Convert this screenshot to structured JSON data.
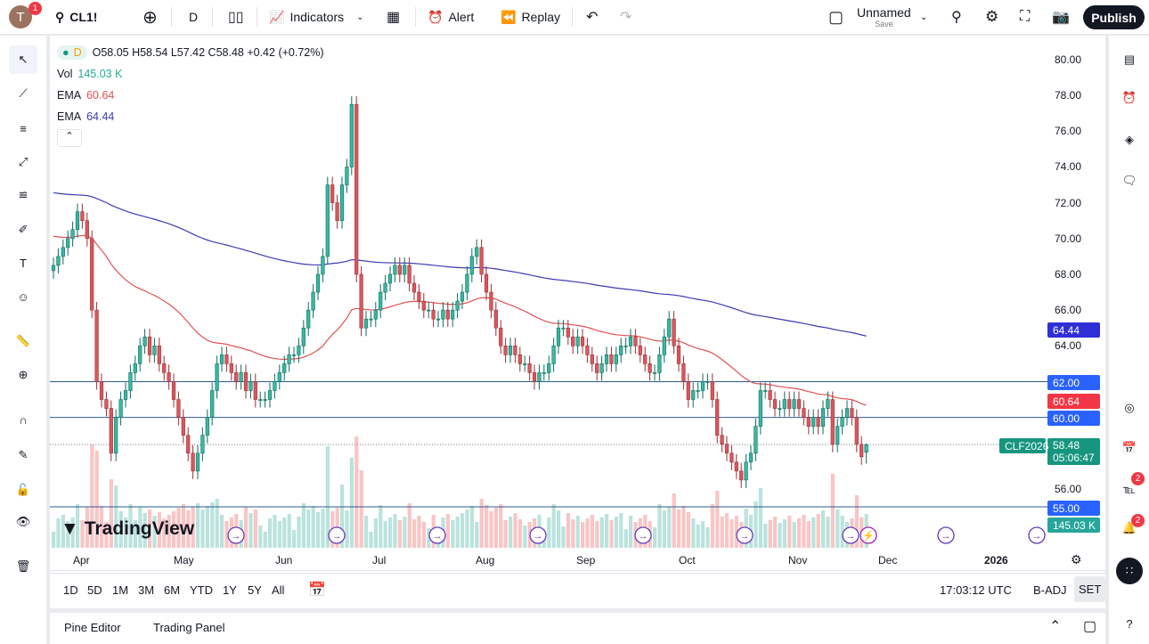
{
  "header": {
    "user_initial": "T",
    "notifications": "1",
    "symbol": "CL1!",
    "interval": "D",
    "indicators": "Indicators",
    "alert": "Alert",
    "replay": "Replay",
    "layout_name": "Unnamed",
    "layout_save": "Save",
    "publish": "Publish"
  },
  "legend": {
    "interval": "D",
    "ohlc": "O58.05 H58.54 L57.42 C58.48 +0.42 (+0.72%)",
    "vol_label": "Vol",
    "vol_value": "145.03 K",
    "ema1_label": "EMA",
    "ema1_value": "60.64",
    "ema2_label": "EMA",
    "ema2_value": "64.44"
  },
  "logo": "TradingView",
  "price_axis": {
    "ticks": [
      "80.00",
      "78.00",
      "76.00",
      "74.00",
      "72.00",
      "70.00",
      "68.00",
      "66.00",
      "64.00",
      "56.00"
    ],
    "labels": {
      "ema2": "64.44",
      "level62": "62.00",
      "ema1": "60.64",
      "level60": "60.00",
      "last": "58.48",
      "countdown": "05:06:47",
      "contract": "CLF2026",
      "level55": "55.00",
      "volume": "145.03 K"
    }
  },
  "time_axis": [
    "Apr",
    "May",
    "Jun",
    "Jul",
    "Aug",
    "Sep",
    "Oct",
    "Nov",
    "Dec",
    "2026"
  ],
  "ranges": [
    "1D",
    "5D",
    "1M",
    "3M",
    "6M",
    "YTD",
    "1Y",
    "5Y",
    "All"
  ],
  "status": {
    "time": "17:03:12 UTC",
    "badj": "B-ADJ",
    "set": "SET"
  },
  "bottom_tabs": [
    "Pine Editor",
    "Trading Panel"
  ],
  "right_badges": {
    "ideas": "2",
    "alerts": "2"
  },
  "colors": {
    "up": "#089981",
    "down": "#f23645",
    "ema1": "#e05252",
    "ema2": "#3b3bb3",
    "level": "#2c5b8e",
    "last": "#16957f"
  },
  "chart_data": {
    "type": "candlestick",
    "symbol": "CL1!",
    "interval": "D",
    "ylim": [
      54,
      81
    ],
    "horizontal_levels": [
      62,
      60,
      55
    ],
    "last": {
      "open": 58.05,
      "high": 58.54,
      "low": 57.42,
      "close": 58.48
    },
    "ema_last": [
      60.64,
      64.44
    ],
    "closes": [
      68.5,
      69,
      69.5,
      70,
      70.5,
      71.5,
      71,
      70,
      66,
      62,
      61,
      60.5,
      58,
      60,
      61,
      61.5,
      62.5,
      63,
      64,
      64.5,
      63.5,
      64,
      63,
      62.5,
      62,
      61,
      60,
      59,
      58,
      57,
      58,
      59,
      60,
      61.5,
      63,
      63.5,
      63,
      62.5,
      62,
      62.5,
      61.5,
      62,
      61,
      61,
      61,
      61.5,
      62,
      62.5,
      63,
      63.5,
      63.5,
      64,
      65,
      66,
      67,
      68,
      69,
      73,
      72,
      71,
      73,
      74,
      77.5,
      68,
      65,
      65.5,
      65.5,
      66,
      67,
      67.5,
      68,
      68.5,
      68,
      68.5,
      67.5,
      67,
      66.5,
      66,
      66,
      65.5,
      65.5,
      66,
      65.5,
      66,
      66.5,
      67,
      68,
      69,
      69.5,
      68,
      67,
      66,
      65,
      64,
      63.5,
      64,
      63.5,
      63,
      63,
      62.5,
      62,
      62.5,
      62.5,
      63,
      64,
      65,
      65,
      64.5,
      64,
      64.5,
      64,
      63.5,
      63,
      62.5,
      63,
      63.5,
      63,
      63.5,
      64,
      64,
      64.5,
      64,
      63.5,
      63,
      62.5,
      62.5,
      63.5,
      64.5,
      65.5,
      64,
      63,
      62,
      61,
      61.5,
      61.5,
      62,
      62,
      61,
      59,
      58.5,
      58,
      57.5,
      57,
      56.5,
      57.5,
      58,
      59.5,
      61.5,
      61.5,
      61,
      60.5,
      60.5,
      61,
      60.5,
      61,
      60.5,
      60,
      59.5,
      60,
      59.5,
      60.5,
      61,
      58.5,
      59.5,
      60,
      60.5,
      60,
      58.5,
      57.8,
      58.48
    ]
  }
}
